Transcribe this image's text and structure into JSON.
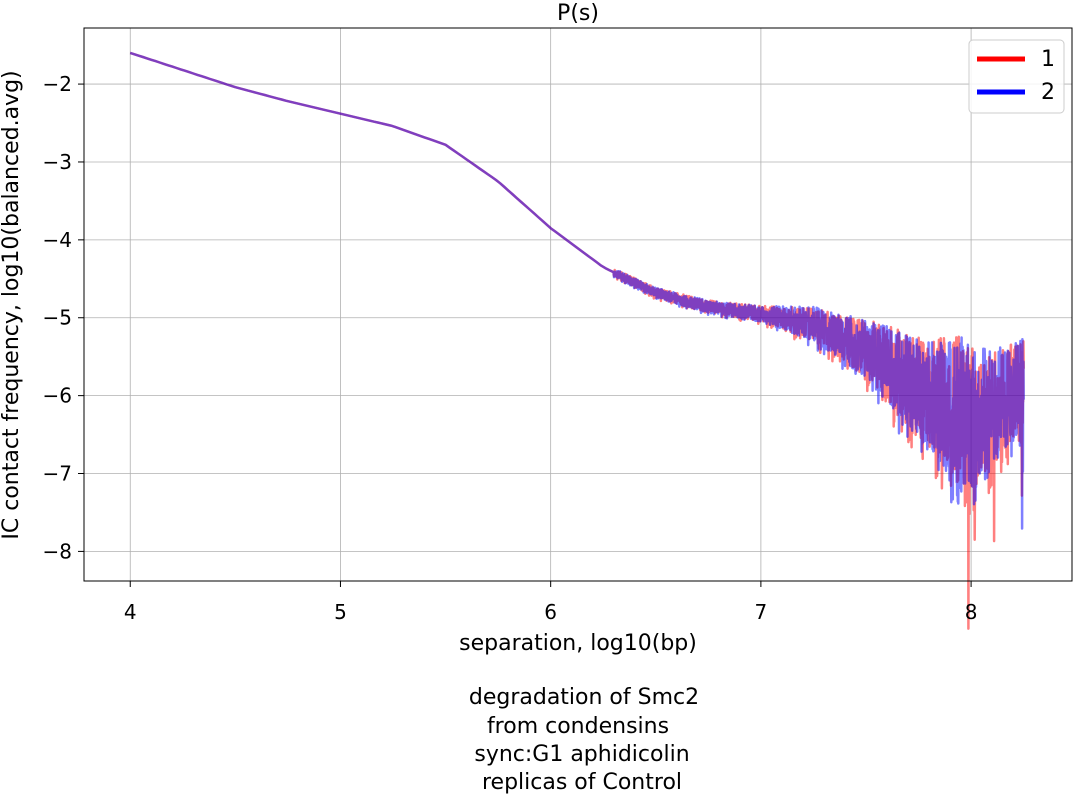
{
  "chart_data": {
    "type": "line",
    "title": "P(s)",
    "xlabel": "separation, log10(bp)",
    "ylabel": "IC contact frequency, log10(balanced.avg)",
    "xlim": [
      3.78,
      8.48
    ],
    "ylim": [
      -8.38,
      -1.28
    ],
    "x_ticks": [
      4,
      5,
      6,
      7,
      8
    ],
    "y_ticks": [
      -2,
      -3,
      -4,
      -5,
      -6,
      -7,
      -8
    ],
    "x_tick_labels": [
      "4",
      "5",
      "6",
      "7",
      "8"
    ],
    "y_tick_labels": [
      "−2",
      "−3",
      "−4",
      "−5",
      "−6",
      "−7",
      "−8"
    ],
    "grid": true,
    "legend_placement": "top-right",
    "caption": [
      "degradation of Smc2",
      "from condensins",
      "sync:G1 aphidicolin",
      "replicas of Control"
    ],
    "series": [
      {
        "name": "1",
        "color": "#ff0000",
        "x": [
          4.0,
          4.25,
          4.5,
          4.75,
          5.0,
          5.25,
          5.5,
          5.75,
          6.0,
          6.25,
          6.5,
          6.75,
          7.0,
          7.25,
          7.5,
          7.75,
          8.0,
          8.1,
          8.2,
          8.25
        ],
        "y": [
          -1.6,
          -1.82,
          -2.04,
          -2.22,
          -2.38,
          -2.54,
          -2.78,
          -3.25,
          -3.85,
          -4.35,
          -4.68,
          -4.86,
          -4.95,
          -5.08,
          -5.4,
          -5.9,
          -6.3,
          -6.15,
          -5.95,
          -5.8
        ],
        "noise_onset": 6.3,
        "noise_amp": [
          [
            6.3,
            0.05
          ],
          [
            7.0,
            0.1
          ],
          [
            7.4,
            0.3
          ],
          [
            7.8,
            0.7
          ],
          [
            7.95,
            1.0
          ],
          [
            8.1,
            0.75
          ],
          [
            8.25,
            0.55
          ]
        ]
      },
      {
        "name": "2",
        "color": "#0000ff",
        "x": [
          4.0,
          4.25,
          4.5,
          4.75,
          5.0,
          5.25,
          5.5,
          5.75,
          6.0,
          6.25,
          6.5,
          6.75,
          7.0,
          7.25,
          7.5,
          7.75,
          8.0,
          8.1,
          8.2,
          8.25
        ],
        "y": [
          -1.6,
          -1.82,
          -2.04,
          -2.22,
          -2.38,
          -2.54,
          -2.78,
          -3.25,
          -3.85,
          -4.35,
          -4.68,
          -4.86,
          -4.95,
          -5.08,
          -5.4,
          -5.9,
          -6.3,
          -6.15,
          -5.95,
          -5.8
        ],
        "noise_onset": 6.3,
        "noise_amp": [
          [
            6.3,
            0.05
          ],
          [
            7.0,
            0.1
          ],
          [
            7.4,
            0.3
          ],
          [
            7.8,
            0.7
          ],
          [
            7.95,
            1.0
          ],
          [
            8.1,
            0.75
          ],
          [
            8.25,
            0.55
          ]
        ]
      }
    ]
  }
}
